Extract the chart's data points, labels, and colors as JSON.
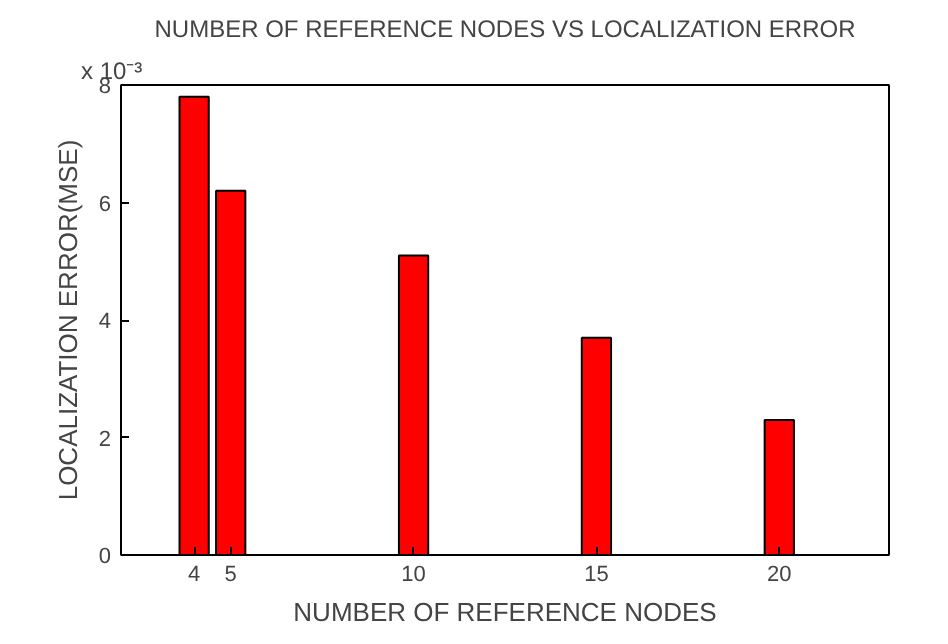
{
  "chart_data": {
    "type": "bar",
    "title": "NUMBER OF REFERENCE NODES VS LOCALIZATION ERROR",
    "xlabel": "NUMBER OF REFERENCE NODES",
    "ylabel": "LOCALIZATION ERROR(MSE)",
    "x": [
      4,
      5,
      10,
      15,
      20
    ],
    "series": [
      {
        "color": "#ff0000",
        "values": [
          7.8,
          6.2,
          5.1,
          3.7,
          2.3
        ]
      }
    ],
    "xlim": [
      2,
      23
    ],
    "xticks": [
      4,
      5,
      10,
      15,
      20
    ],
    "ylim": [
      0,
      8
    ],
    "yticks": [
      0,
      2,
      4,
      6,
      8
    ],
    "annotations": [
      "x 10⁻³"
    ],
    "grid": false
  }
}
